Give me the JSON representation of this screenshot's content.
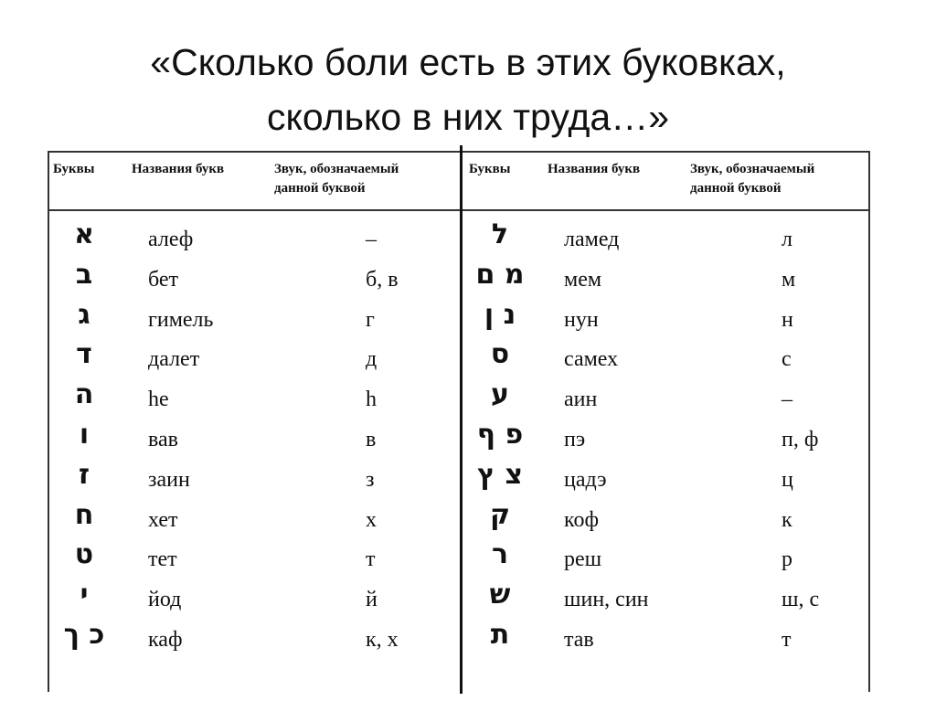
{
  "title": [
    "«Сколько боли есть в этих буковках,",
    "сколько в них труда…»"
  ],
  "table": {
    "headers": {
      "letters": "Буквы",
      "names": "Названия букв",
      "sound_line1": "Звук, обозначаемый",
      "sound_line2": "данной буквой"
    },
    "left": [
      {
        "letter": "א",
        "name": "алеф",
        "sound": "–"
      },
      {
        "letter": "ב",
        "name": "бет",
        "sound": "б, в"
      },
      {
        "letter": "ג",
        "name": "гимель",
        "sound": "г"
      },
      {
        "letter": "ד",
        "name": "далет",
        "sound": "д"
      },
      {
        "letter": "ה",
        "name": "he",
        "sound": "h"
      },
      {
        "letter": "ו",
        "name": "вав",
        "sound": "в"
      },
      {
        "letter": "ז",
        "name": "заин",
        "sound": "з"
      },
      {
        "letter": "ח",
        "name": "хет",
        "sound": "х"
      },
      {
        "letter": "ט",
        "name": "тет",
        "sound": "т"
      },
      {
        "letter": "י",
        "name": "йод",
        "sound": "й"
      },
      {
        "letter": "כ ך",
        "name": "каф",
        "sound": "к, х"
      }
    ],
    "right": [
      {
        "letter": "ל",
        "name": "ламед",
        "sound": "л"
      },
      {
        "letter": "מ ם",
        "name": "мем",
        "sound": "м"
      },
      {
        "letter": "נ ן",
        "name": "нун",
        "sound": "н"
      },
      {
        "letter": "ס",
        "name": "самех",
        "sound": "с"
      },
      {
        "letter": "ע",
        "name": "аин",
        "sound": "–"
      },
      {
        "letter": "פ ף",
        "name": "пэ",
        "sound": "п, ф"
      },
      {
        "letter": "צ ץ",
        "name": "цадэ",
        "sound": "ц"
      },
      {
        "letter": "ק",
        "name": "коф",
        "sound": "к"
      },
      {
        "letter": "ר",
        "name": "реш",
        "sound": "р"
      },
      {
        "letter": "ש",
        "name": "шин, син",
        "sound": "ш, с"
      },
      {
        "letter": "ת",
        "name": "тав",
        "sound": "т"
      }
    ]
  }
}
